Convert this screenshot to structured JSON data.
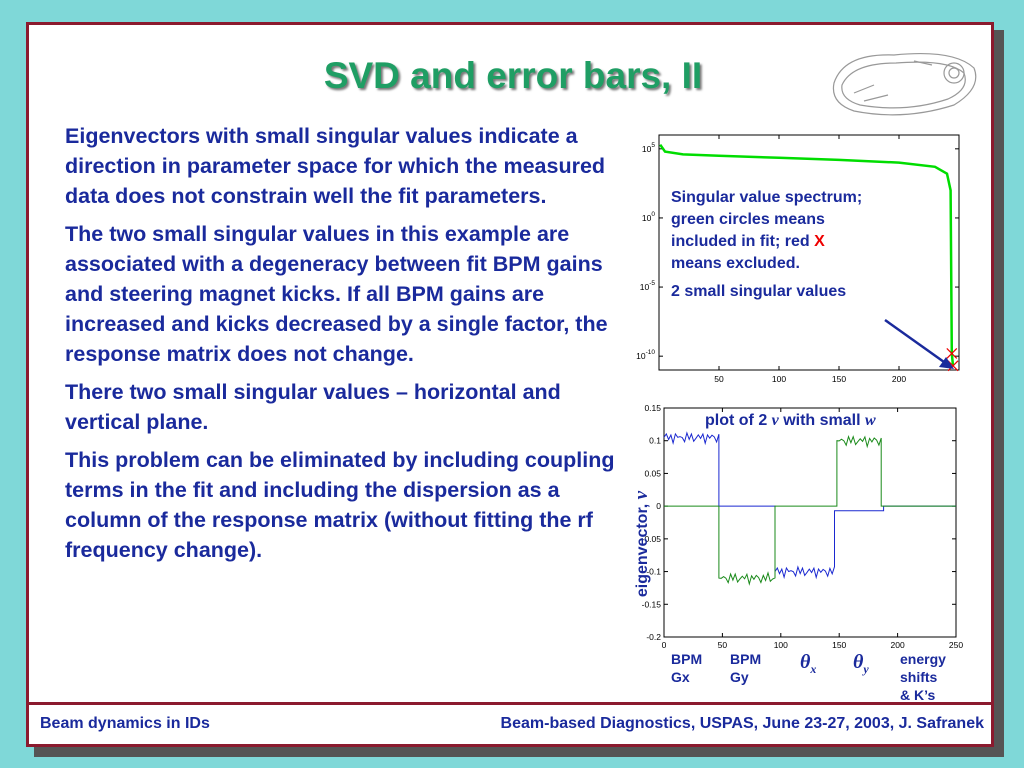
{
  "slide": {
    "title": "SVD and error bars, II",
    "paragraphs": [
      "Eigenvectors with small singular values indicate a direction in parameter space for which the measured data does not constrain well the fit parameters.",
      "The two small singular values in this example are associated with a degeneracy between fit BPM gains and steering magnet kicks.  If all BPM gains are increased and kicks decreased by a single factor, the response matrix does not change.",
      "There two small singular values – horizontal and vertical plane.",
      "This problem can be eliminated by including coupling terms in the fit and including the dispersion as a column of the response matrix (without fitting the rf frequency change)."
    ],
    "footer_left": "Beam dynamics in IDs",
    "footer_right": "Beam-based Diagnostics, USPAS, June 23-27, 2003, J. Safranek"
  },
  "annotation": {
    "line1": "Singular value spectrum;",
    "line2": "green circles means",
    "line3a": "included in fit; red ",
    "line3x": "X",
    "line4": "means excluded.",
    "line5": "2 small singular values"
  },
  "bottom_labels": {
    "plot_title_a": "plot of 2 ",
    "plot_title_v": "v",
    "plot_title_b": " with small ",
    "plot_title_w": "w",
    "ylabel": "eigenvector, ",
    "ylabel_v": "v",
    "bpm_gx": "BPM\nGx",
    "bpm_gy": "BPM\nGy",
    "theta_x": "θ",
    "theta_x_sub": "x",
    "theta_y": "θ",
    "theta_y_sub": "y",
    "energy": "energy\nshifts\n& K’s"
  },
  "chart_data": [
    {
      "type": "line",
      "yscale": "log",
      "xlim": [
        0,
        250
      ],
      "ylim_exponent": [
        -11,
        6
      ],
      "xticks": [
        "50",
        "100",
        "150",
        "200"
      ],
      "yticks": [
        {
          "base": "10",
          "exp": "5"
        },
        {
          "base": "10",
          "exp": "0"
        },
        {
          "base": "10",
          "exp": "-5"
        },
        {
          "base": "10",
          "exp": "-10"
        }
      ],
      "series": [
        {
          "color": "#00dd00",
          "points_log10": [
            [
              1,
              5.3
            ],
            [
              5,
              4.8
            ],
            [
              20,
              4.6
            ],
            [
              50,
              4.5
            ],
            [
              100,
              4.35
            ],
            [
              150,
              4.2
            ],
            [
              200,
              4.0
            ],
            [
              230,
              3.7
            ],
            [
              240,
              3.2
            ],
            [
              243,
              2.0
            ],
            [
              244,
              -9.8
            ],
            [
              245,
              -10.7
            ]
          ]
        }
      ],
      "excluded_points": [
        [
          244,
          -9.8
        ],
        [
          245,
          -10.7
        ]
      ]
    },
    {
      "type": "line",
      "xlim": [
        0,
        250
      ],
      "ylim": [
        -0.2,
        0.15
      ],
      "xticks": [
        "0",
        "50",
        "100",
        "150",
        "200",
        "250"
      ],
      "yticks": [
        "0.15",
        "0.1",
        "0.05",
        "0",
        "-0.05",
        "-0.1",
        "-0.15",
        "-0.2"
      ],
      "series": [
        {
          "color": "#1a28d0",
          "segments": [
            [
              [
                0,
                0.105
              ],
              [
                47,
                0.105
              ]
            ],
            [
              [
                47,
                0
              ],
              [
                95,
                0
              ]
            ],
            [
              [
                95,
                -0.1
              ],
              [
                146,
                -0.1
              ]
            ],
            [
              [
                146,
                -0.007
              ],
              [
                188,
                -0.007
              ]
            ],
            [
              [
                188,
                0
              ],
              [
                250,
                0
              ]
            ]
          ]
        },
        {
          "color": "#1a8a1a",
          "segments": [
            [
              [
                0,
                0
              ],
              [
                47,
                0
              ]
            ],
            [
              [
                47,
                -0.11
              ],
              [
                95,
                -0.11
              ]
            ],
            [
              [
                95,
                0
              ],
              [
                148,
                0
              ]
            ],
            [
              [
                148,
                0.1
              ],
              [
                186,
                0.1
              ]
            ],
            [
              [
                186,
                0
              ],
              [
                250,
                0
              ]
            ]
          ]
        }
      ]
    }
  ]
}
